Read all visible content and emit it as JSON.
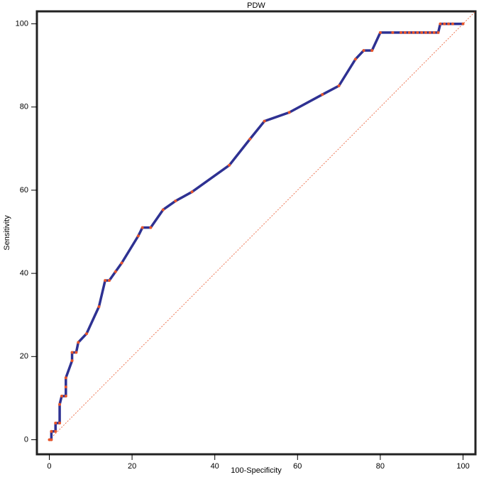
{
  "chart_data": {
    "type": "line",
    "title": "PDW",
    "xlabel": "100-Specificity",
    "ylabel": "Sensitivity",
    "x": [
      0,
      0.5,
      0.5,
      1.5,
      1.5,
      2.5,
      2.5,
      3,
      4,
      4,
      4,
      5.5,
      5.5,
      6.5,
      7,
      9,
      12,
      13.5,
      14.5,
      16,
      17.5,
      21.5,
      22.5,
      24.5,
      27.5,
      30.5,
      34.5,
      43.5,
      48.5,
      52,
      58,
      66,
      70,
      74,
      76,
      78,
      80,
      83,
      85,
      86,
      87,
      88,
      89,
      90,
      91,
      92,
      93,
      94,
      94.5,
      95.5,
      96.5,
      97.5,
      100
    ],
    "values": [
      0,
      0,
      2,
      2,
      4,
      4,
      8.5,
      10.5,
      10.5,
      12.7,
      14.9,
      19,
      21,
      21,
      23.4,
      25.5,
      32,
      38.3,
      38.3,
      40.4,
      42.5,
      49,
      51,
      51,
      55.3,
      57.4,
      59.6,
      66,
      72.3,
      76.6,
      78.7,
      83,
      85.1,
      91.5,
      93.6,
      93.6,
      97.9,
      97.9,
      97.9,
      97.9,
      97.9,
      97.9,
      97.9,
      97.9,
      97.9,
      97.9,
      97.9,
      97.9,
      100,
      100,
      100,
      100,
      100
    ],
    "color": "#2e3192",
    "marker_color": "#e8552a",
    "diagonal": true,
    "diagonal_color": "#e8552a",
    "xlim": [
      -3,
      103
    ],
    "ylim": [
      -3.5,
      103
    ],
    "xticks": [
      0,
      20,
      40,
      60,
      80,
      100
    ],
    "yticks": [
      0,
      20,
      40,
      60,
      80,
      100
    ]
  }
}
